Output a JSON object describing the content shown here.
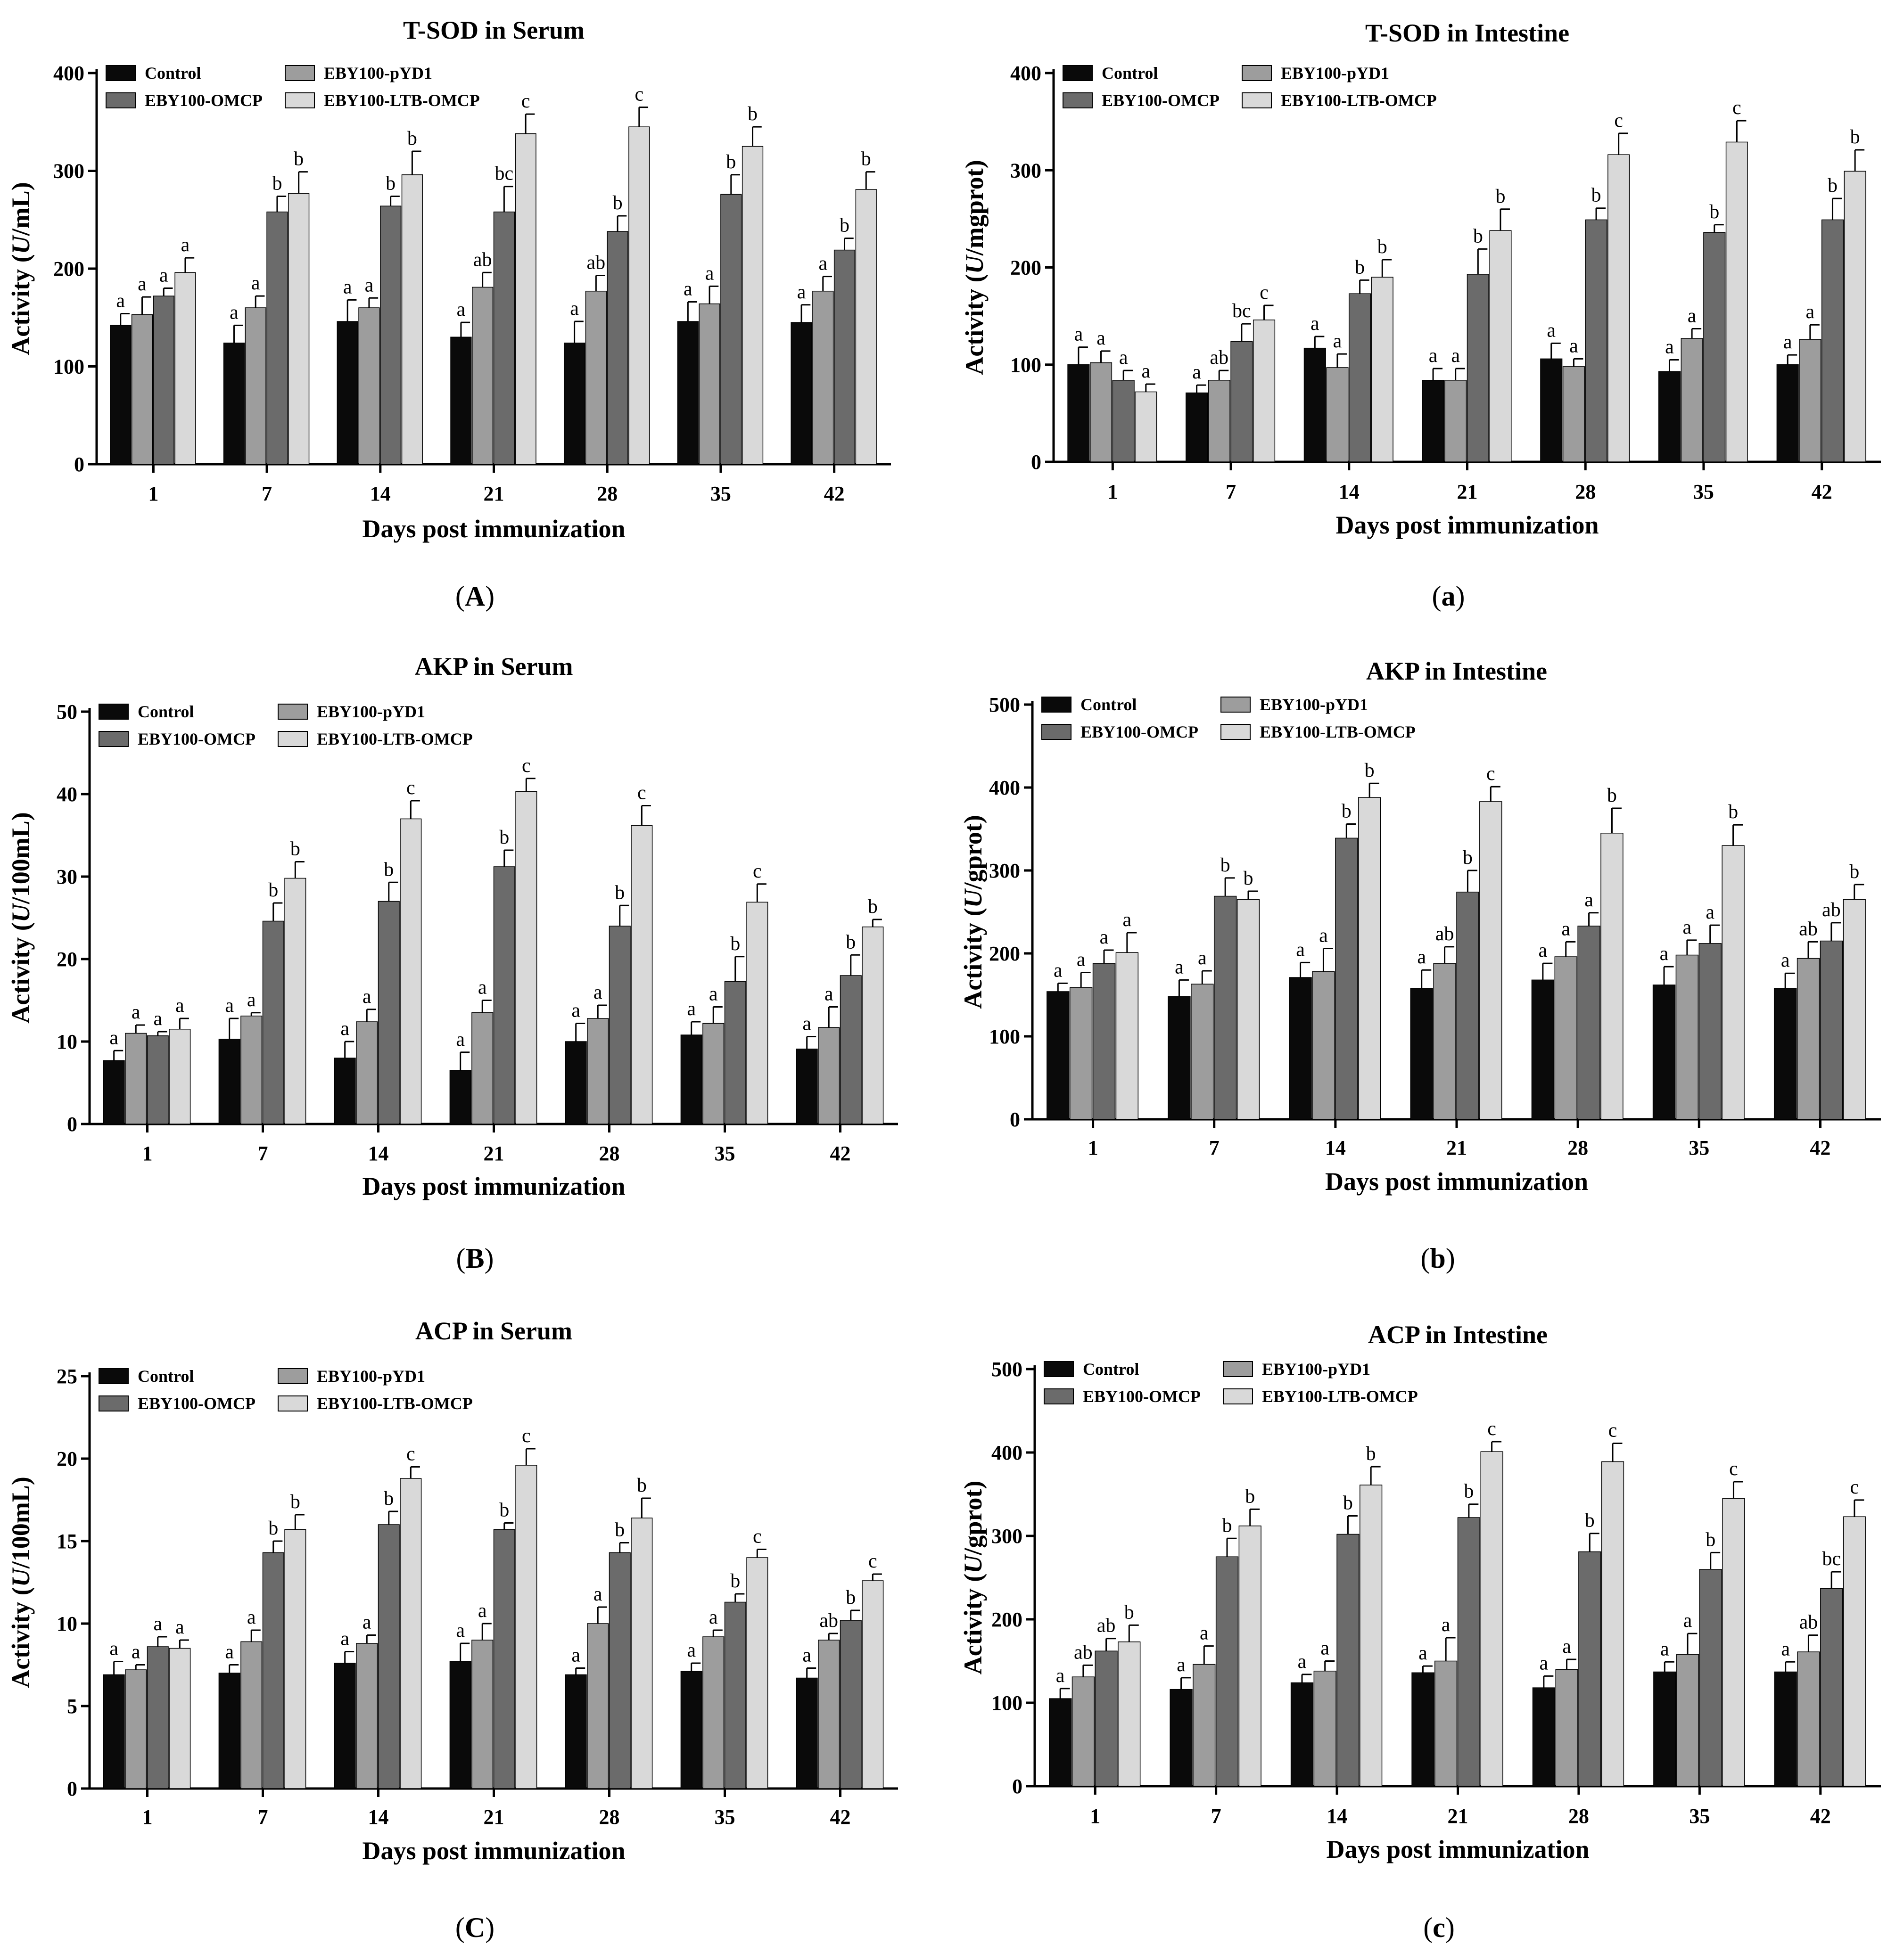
{
  "figure": {
    "legend_labels": [
      "Control",
      "EBY100-pYD1",
      "EBY100-OMCP",
      "EBY100-LTB-OMCP"
    ],
    "series_colors": [
      "#0a0a0a",
      "#9d9d9d",
      "#6b6b6b",
      "#d9d9d9"
    ]
  },
  "chart_data": [
    {
      "type": "bar",
      "title": "T-SOD in Serum",
      "panel_letter": "A",
      "xlabel": "Days post immunization",
      "ylabel_prefix": "Activity (",
      "ylabel_unit_italic": "U",
      "ylabel_suffix": "/mL)",
      "ylim": [
        0,
        400
      ],
      "yticks": [
        0,
        100,
        200,
        300,
        400
      ],
      "categories": [
        "1",
        "7",
        "14",
        "21",
        "28",
        "35",
        "42"
      ],
      "series": [
        {
          "name": "Control",
          "values": [
            142,
            124,
            146,
            130,
            124,
            146,
            145
          ],
          "errors": [
            12,
            18,
            22,
            15,
            22,
            20,
            18
          ],
          "labels": [
            "a",
            "a",
            "a",
            "a",
            "a",
            "a",
            "a"
          ]
        },
        {
          "name": "EBY100-pYD1",
          "values": [
            153,
            160,
            160,
            181,
            177,
            164,
            177
          ],
          "errors": [
            18,
            12,
            10,
            15,
            16,
            18,
            15
          ],
          "labels": [
            "a",
            "a",
            "a",
            "ab",
            "ab",
            "a",
            "a"
          ]
        },
        {
          "name": "EBY100-OMCP",
          "values": [
            172,
            258,
            264,
            258,
            238,
            276,
            219
          ],
          "errors": [
            8,
            16,
            10,
            26,
            16,
            20,
            12
          ],
          "labels": [
            "a",
            "b",
            "b",
            "bc",
            "b",
            "b",
            "b"
          ]
        },
        {
          "name": "EBY100-LTB-OMCP",
          "values": [
            196,
            277,
            296,
            338,
            345,
            325,
            281
          ],
          "errors": [
            15,
            22,
            24,
            20,
            20,
            20,
            18
          ],
          "labels": [
            "a",
            "b",
            "b",
            "c",
            "c",
            "b",
            "b"
          ]
        }
      ]
    },
    {
      "type": "bar",
      "title": "T-SOD in Intestine",
      "panel_letter": "a",
      "xlabel": "Days post immunization",
      "ylabel_prefix": "Activity (",
      "ylabel_unit_italic": "U",
      "ylabel_suffix": "/mgprot)",
      "ylim": [
        0,
        400
      ],
      "yticks": [
        0,
        100,
        200,
        300,
        400
      ],
      "categories": [
        "1",
        "7",
        "14",
        "21",
        "28",
        "35",
        "42"
      ],
      "series": [
        {
          "name": "Control",
          "values": [
            100,
            71,
            117,
            84,
            106,
            93,
            100
          ],
          "errors": [
            18,
            8,
            12,
            12,
            16,
            12,
            10
          ],
          "labels": [
            "a",
            "a",
            "a",
            "a",
            "a",
            "a",
            "a"
          ]
        },
        {
          "name": "EBY100-pYD1",
          "values": [
            102,
            84,
            97,
            84,
            98,
            127,
            126
          ],
          "errors": [
            12,
            10,
            14,
            12,
            8,
            10,
            15
          ],
          "labels": [
            "a",
            "ab",
            "a",
            "a",
            "a",
            "a",
            "a"
          ]
        },
        {
          "name": "EBY100-OMCP",
          "values": [
            84,
            124,
            173,
            193,
            249,
            236,
            249
          ],
          "errors": [
            10,
            18,
            14,
            26,
            12,
            8,
            22
          ],
          "labels": [
            "a",
            "bc",
            "b",
            "b",
            "b",
            "b",
            "b"
          ]
        },
        {
          "name": "EBY100-LTB-OMCP",
          "values": [
            72,
            146,
            190,
            238,
            316,
            329,
            299
          ],
          "errors": [
            8,
            15,
            18,
            22,
            22,
            22,
            22
          ],
          "labels": [
            "a",
            "c",
            "b",
            "b",
            "c",
            "c",
            "b"
          ]
        }
      ]
    },
    {
      "type": "bar",
      "title": "AKP in Serum",
      "panel_letter": "B",
      "xlabel": "Days post immunization",
      "ylabel_prefix": "Activity (",
      "ylabel_unit_italic": "U",
      "ylabel_suffix": "/100mL)",
      "ylim": [
        0,
        50
      ],
      "yticks": [
        0,
        10,
        20,
        30,
        40,
        50
      ],
      "categories": [
        "1",
        "7",
        "14",
        "21",
        "28",
        "35",
        "42"
      ],
      "series": [
        {
          "name": "Control",
          "values": [
            7.7,
            10.3,
            8.0,
            6.5,
            10.0,
            10.8,
            9.1
          ],
          "errors": [
            1.2,
            2.5,
            2.0,
            2.2,
            2.2,
            1.6,
            1.5
          ],
          "labels": [
            "a",
            "a",
            "a",
            "a",
            "a",
            "a",
            "a"
          ]
        },
        {
          "name": "EBY100-pYD1",
          "values": [
            11.0,
            13.1,
            12.4,
            13.5,
            12.8,
            12.2,
            11.7
          ],
          "errors": [
            1.0,
            0.4,
            1.5,
            1.5,
            1.6,
            2.0,
            2.5
          ],
          "labels": [
            "a",
            "a",
            "a",
            "a",
            "a",
            "a",
            "a"
          ]
        },
        {
          "name": "EBY100-OMCP",
          "values": [
            10.7,
            24.6,
            27.0,
            31.2,
            24.0,
            17.3,
            18.0
          ],
          "errors": [
            0.5,
            2.2,
            2.3,
            2.0,
            2.5,
            3.0,
            2.5
          ],
          "labels": [
            "a",
            "b",
            "b",
            "b",
            "b",
            "b",
            "b"
          ]
        },
        {
          "name": "EBY100-LTB-OMCP",
          "values": [
            11.5,
            29.8,
            37.0,
            40.3,
            36.2,
            26.9,
            23.9
          ],
          "errors": [
            1.3,
            2.0,
            2.2,
            1.6,
            2.4,
            2.2,
            0.9
          ],
          "labels": [
            "a",
            "b",
            "c",
            "c",
            "c",
            "c",
            "b"
          ]
        }
      ]
    },
    {
      "type": "bar",
      "title": "AKP in Intestine",
      "panel_letter": "b",
      "xlabel": "Days post immunization",
      "ylabel_prefix": "Activity (",
      "ylabel_unit_italic": "U",
      "ylabel_suffix": "/gprot)",
      "ylim": [
        0,
        500
      ],
      "yticks": [
        0,
        100,
        200,
        300,
        400,
        500
      ],
      "categories": [
        "1",
        "7",
        "14",
        "21",
        "28",
        "35",
        "42"
      ],
      "series": [
        {
          "name": "Control",
          "values": [
            154,
            148,
            171,
            158,
            168,
            162,
            158
          ],
          "errors": [
            10,
            20,
            18,
            22,
            20,
            22,
            18
          ],
          "labels": [
            "a",
            "a",
            "a",
            "a",
            "a",
            "a",
            "a"
          ]
        },
        {
          "name": "EBY100-pYD1",
          "values": [
            159,
            163,
            178,
            188,
            196,
            198,
            194
          ],
          "errors": [
            18,
            16,
            28,
            20,
            18,
            18,
            20
          ],
          "labels": [
            "a",
            "a",
            "a",
            "ab",
            "a",
            "a",
            "ab"
          ]
        },
        {
          "name": "EBY100-OMCP",
          "values": [
            188,
            269,
            339,
            274,
            233,
            212,
            215
          ],
          "errors": [
            16,
            22,
            17,
            26,
            16,
            22,
            22
          ],
          "labels": [
            "a",
            "b",
            "b",
            "b",
            "a",
            "a",
            "ab"
          ]
        },
        {
          "name": "EBY100-LTB-OMCP",
          "values": [
            201,
            265,
            388,
            383,
            345,
            330,
            265
          ],
          "errors": [
            24,
            10,
            17,
            18,
            30,
            25,
            18
          ],
          "labels": [
            "a",
            "b",
            "b",
            "c",
            "b",
            "b",
            "b"
          ]
        }
      ]
    },
    {
      "type": "bar",
      "title": "ACP in Serum",
      "panel_letter": "C",
      "xlabel": "Days post immunization",
      "ylabel_prefix": "Activity (",
      "ylabel_unit_italic": "U",
      "ylabel_suffix": "/100mL)",
      "ylim": [
        0,
        25
      ],
      "yticks": [
        0,
        5,
        10,
        15,
        20,
        25
      ],
      "categories": [
        "1",
        "7",
        "14",
        "21",
        "28",
        "35",
        "42"
      ],
      "series": [
        {
          "name": "Control",
          "values": [
            6.9,
            7.0,
            7.6,
            7.7,
            6.9,
            7.1,
            6.7
          ],
          "errors": [
            0.8,
            0.5,
            0.7,
            1.1,
            0.4,
            0.5,
            0.6
          ],
          "labels": [
            "a",
            "a",
            "a",
            "a",
            "a",
            "a",
            "a"
          ]
        },
        {
          "name": "EBY100-pYD1",
          "values": [
            7.2,
            8.9,
            8.8,
            9.0,
            10.0,
            9.2,
            9.0
          ],
          "errors": [
            0.3,
            0.7,
            0.5,
            1.0,
            1.0,
            0.4,
            0.4
          ],
          "labels": [
            "a",
            "a",
            "a",
            "a",
            "a",
            "a",
            "ab"
          ]
        },
        {
          "name": "EBY100-OMCP",
          "values": [
            8.6,
            14.3,
            16.0,
            15.7,
            14.3,
            11.3,
            10.2
          ],
          "errors": [
            0.6,
            0.7,
            0.8,
            0.4,
            0.6,
            0.5,
            0.6
          ],
          "labels": [
            "a",
            "b",
            "b",
            "b",
            "b",
            "b",
            "b"
          ]
        },
        {
          "name": "EBY100-LTB-OMCP",
          "values": [
            8.5,
            15.7,
            18.8,
            19.6,
            16.4,
            14.0,
            12.6
          ],
          "errors": [
            0.5,
            0.9,
            0.7,
            1.0,
            1.2,
            0.5,
            0.4
          ],
          "labels": [
            "a",
            "b",
            "c",
            "c",
            "b",
            "c",
            "c"
          ]
        }
      ]
    },
    {
      "type": "bar",
      "title": "ACP in Intestine",
      "panel_letter": "c",
      "xlabel": "Days post immunization",
      "ylabel_prefix": "Activity (",
      "ylabel_unit_italic": "U",
      "ylabel_suffix": "/gprot)",
      "ylim": [
        0,
        500
      ],
      "yticks": [
        0,
        100,
        200,
        300,
        400,
        500
      ],
      "categories": [
        "1",
        "7",
        "14",
        "21",
        "28",
        "35",
        "42"
      ],
      "series": [
        {
          "name": "Control",
          "values": [
            105,
            116,
            124,
            136,
            118,
            137,
            137
          ],
          "errors": [
            12,
            14,
            10,
            8,
            14,
            12,
            12
          ],
          "labels": [
            "a",
            "a",
            "a",
            "a",
            "a",
            "a",
            "a"
          ]
        },
        {
          "name": "EBY100-pYD1",
          "values": [
            131,
            146,
            138,
            150,
            140,
            158,
            161
          ],
          "errors": [
            14,
            22,
            12,
            28,
            12,
            25,
            20
          ],
          "labels": [
            "ab",
            "a",
            "a",
            "a",
            "a",
            "a",
            "ab"
          ]
        },
        {
          "name": "EBY100-OMCP",
          "values": [
            162,
            275,
            302,
            322,
            281,
            260,
            237
          ],
          "errors": [
            15,
            22,
            22,
            16,
            22,
            20,
            20
          ],
          "labels": [
            "ab",
            "b",
            "b",
            "b",
            "b",
            "b",
            "bc"
          ]
        },
        {
          "name": "EBY100-LTB-OMCP",
          "values": [
            173,
            312,
            361,
            401,
            389,
            345,
            323
          ],
          "errors": [
            20,
            20,
            22,
            12,
            22,
            20,
            20
          ],
          "labels": [
            "b",
            "b",
            "b",
            "c",
            "c",
            "c",
            "c"
          ]
        }
      ]
    }
  ]
}
